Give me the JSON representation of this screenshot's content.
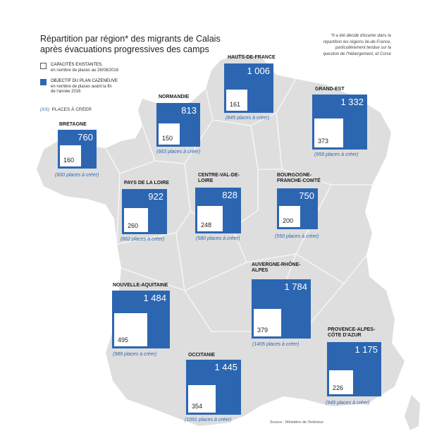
{
  "title": "Répartition par région* des migrants de Calais après évacuations progressives des camps",
  "footnote": "*Il a été décidé d'écarter dans la répartition les régions Ile-de-France, particulièrement tendue sur la question de l'hébergement, et Corse",
  "legend": {
    "existing_title": "CAPACITÉS EXISTANTES,",
    "existing_sub": "en nombre de places au 26/08/2016",
    "plan_title": "OBJECTIF DU PLAN CAZENEUVE",
    "plan_sub": "en nombre de places avant la fin de l'année 2016",
    "create_key": "(XX)",
    "create_label": "PLACES À CRÉER"
  },
  "source": "Source : Ministère de l'Intérieur",
  "colors": {
    "plan": "#2c66b1",
    "existing": "#ffffff",
    "map": "#dedede",
    "create_text": "#2c66b1"
  },
  "chart_data": {
    "type": "table",
    "columns": [
      "region",
      "capacites_existantes",
      "objectif_plan",
      "places_a_creer"
    ],
    "regions": [
      {
        "id": "hauts-de-france",
        "name": "HAUTS-DE-FRANCE",
        "existing": "161",
        "target": "1 006",
        "to_create": "(845 places à créer)"
      },
      {
        "id": "grand-est",
        "name": "GRAND-EST",
        "existing": "373",
        "target": "1 332",
        "to_create": "(959 places à créer)"
      },
      {
        "id": "normandie",
        "name": "NORMANDIE",
        "existing": "150",
        "target": "813",
        "to_create": "(663 places à créer)"
      },
      {
        "id": "bretagne",
        "name": "BRETAGNE",
        "existing": "160",
        "target": "760",
        "to_create": "(600 places à créer)"
      },
      {
        "id": "pays-de-la-loire",
        "name": "PAYS DE LA LOIRE",
        "existing": "260",
        "target": "922",
        "to_create": "(662 places à créer)"
      },
      {
        "id": "centre-val-de-loire",
        "name": "CENTRE-VAL-DE-LOIRE",
        "existing": "248",
        "target": "828",
        "to_create": "(580 places à créer)"
      },
      {
        "id": "bourgogne-franche-comte",
        "name": "BOURGOGNE-FRANCHE-COMTÉ",
        "existing": "200",
        "target": "750",
        "to_create": "(550 places à créer)"
      },
      {
        "id": "nouvelle-aquitaine",
        "name": "NOUVELLE-AQUITAINE",
        "existing": "495",
        "target": "1 484",
        "to_create": "(989 places à créer)"
      },
      {
        "id": "auvergne-rhone-alpes",
        "name": "AUVERGNE-RHÔNE-ALPES",
        "existing": "379",
        "target": "1 784",
        "to_create": "(1405 places à créer)"
      },
      {
        "id": "occitanie",
        "name": "OCCITANIE",
        "existing": "354",
        "target": "1 445",
        "to_create": "(1091 places à créer)"
      },
      {
        "id": "paca",
        "name": "PROVENCE-ALPES-CÔTE D'AZUR",
        "existing": "226",
        "target": "1 175",
        "to_create": "(949 places à créer)"
      }
    ]
  }
}
